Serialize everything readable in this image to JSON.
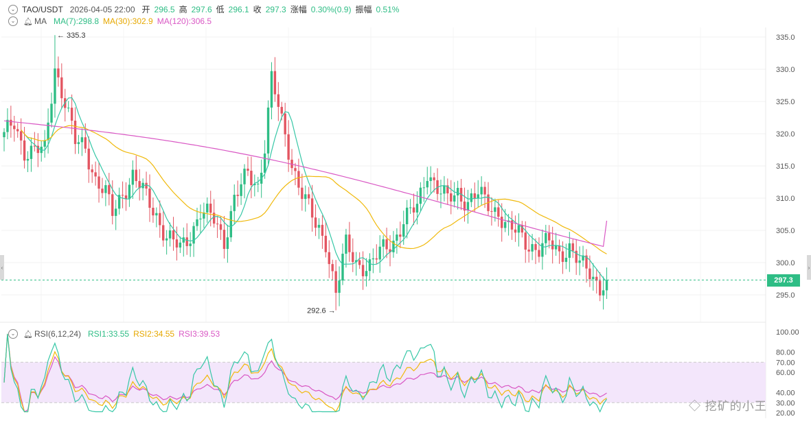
{
  "header": {
    "symbol": "TAO/USDT",
    "datetime": "2026-04-05 22:00",
    "open_label": "开",
    "open": "296.5",
    "high_label": "高",
    "high": "297.6",
    "low_label": "低",
    "low": "296.1",
    "close_label": "收",
    "close": "297.3",
    "change_label": "涨幅",
    "change": "0.30%(0.9)",
    "amp_label": "振幅",
    "amp": "0.51%"
  },
  "ma_legend": {
    "label": "MA",
    "ma7": "MA(7):298.8",
    "ma30": "MA(30):302.9",
    "ma120": "MA(120):306.5"
  },
  "rsi_legend": {
    "label": "RSI(6,12,24)",
    "rsi1": "RSI1:33.55",
    "rsi2": "RSI2:34.55",
    "rsi3": "RSI3:39.53"
  },
  "colors": {
    "up": "#2ebd85",
    "down": "#e35561",
    "ma7": "#36c7a6",
    "ma30": "#f0b90b",
    "ma120": "#d957c4",
    "rsi1": "#36c7a6",
    "rsi2": "#f0b90b",
    "rsi3": "#d957c4",
    "rsi_band": "#f3e6fb"
  },
  "watermark": "挖矿的小王",
  "chart_data": [
    {
      "type": "candlestick",
      "y_ticks": [
        "335.0",
        "330.0",
        "325.0",
        "320.0",
        "315.0",
        "310.0",
        "305.0",
        "300.0",
        "295.0"
      ],
      "ylim": [
        292.0,
        337.0
      ],
      "last_price": 297.3,
      "last_price_label": "297.3",
      "high_marker": {
        "value": 335.3,
        "label": "← 335.3",
        "index": 15
      },
      "low_marker": {
        "value": 292.6,
        "label": "292.6 →",
        "index": 98
      },
      "anchors": [
        [
          0,
          319.5
        ],
        [
          3,
          321.5
        ],
        [
          6,
          317.5
        ],
        [
          12,
          317.2
        ],
        [
          15,
          330.5
        ],
        [
          18,
          325.0
        ],
        [
          21,
          318.5
        ],
        [
          24,
          318.0
        ],
        [
          27,
          313.0
        ],
        [
          30,
          310.5
        ],
        [
          32,
          307.5
        ],
        [
          35,
          311.0
        ],
        [
          38,
          313.5
        ],
        [
          42,
          310.0
        ],
        [
          45,
          307.5
        ],
        [
          48,
          304.0
        ],
        [
          52,
          302.0
        ],
        [
          55,
          304.5
        ],
        [
          58,
          308.0
        ],
        [
          62,
          306.5
        ],
        [
          65,
          303.5
        ],
        [
          68,
          310.0
        ],
        [
          72,
          313.5
        ],
        [
          75,
          312.0
        ],
        [
          77,
          318.5
        ],
        [
          79,
          328.5
        ],
        [
          82,
          321.5
        ],
        [
          85,
          315.5
        ],
        [
          88,
          311.0
        ],
        [
          92,
          305.5
        ],
        [
          95,
          303.5
        ],
        [
          98,
          295.5
        ],
        [
          101,
          302.5
        ],
        [
          104,
          300.0
        ],
        [
          108,
          299.5
        ],
        [
          112,
          302.0
        ],
        [
          115,
          303.5
        ],
        [
          118,
          306.5
        ],
        [
          122,
          308.5
        ],
        [
          125,
          314.5
        ],
        [
          128,
          311.5
        ],
        [
          131,
          309.5
        ],
        [
          134,
          311.0
        ],
        [
          137,
          309.5
        ],
        [
          140,
          310.5
        ],
        [
          143,
          309.0
        ],
        [
          146,
          308.0
        ],
        [
          149,
          305.0
        ],
        [
          152,
          304.5
        ],
        [
          155,
          303.0
        ],
        [
          158,
          302.0
        ],
        [
          161,
          303.0
        ],
        [
          164,
          301.5
        ],
        [
          167,
          302.5
        ],
        [
          170,
          299.5
        ],
        [
          173,
          298.5
        ],
        [
          176,
          296.5
        ],
        [
          178,
          297.3
        ]
      ],
      "ma": {
        "ma7": 298.8,
        "ma30": 302.9,
        "ma120": 306.5
      }
    },
    {
      "type": "line",
      "name": "RSI(6,12,24)",
      "y_ticks": [
        "100.00",
        "80.00",
        "70.00",
        "60.00",
        "40.00",
        "30.00",
        "20.00"
      ],
      "ylim": [
        20,
        100
      ],
      "band": [
        30,
        70
      ],
      "latest": {
        "rsi1": 33.55,
        "rsi2": 34.55,
        "rsi3": 39.53
      }
    }
  ]
}
